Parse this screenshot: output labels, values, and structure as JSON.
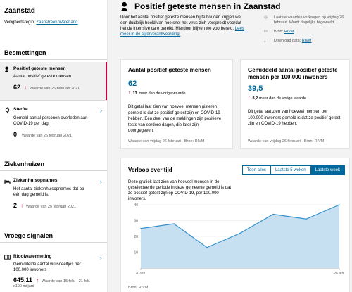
{
  "sidebar": {
    "title": "Zaanstad",
    "region_label": "Veiligheidsregio:",
    "region_link": "Zaanstreek-Waterland",
    "groups": {
      "besmettingen": "Besmettingen",
      "ziekenhuizen": "Ziekenhuizen",
      "vroege": "Vroege signalen"
    },
    "items": {
      "positief": {
        "title": "Positief geteste mensen",
        "desc": "Aantal positief geteste mensen",
        "value": "62",
        "date": "Waarde van 26 februari 2021"
      },
      "sterfte": {
        "title": "Sterfte",
        "desc": "Gemeld aantal personen overleden aan COVID-19 per dag",
        "value": "0",
        "date": "Waarde van 26 februari 2021"
      },
      "ziekenhuis": {
        "title": "Ziekenhuisopnames",
        "desc": "Het aantal ziekenhuisopnames dat op één dag gemeld is.",
        "value": "2",
        "date": "Waarde van 25 februari 2021"
      },
      "riool": {
        "title": "Rioolwatermeting",
        "desc": "Gemiddelde aantal virusdeeltjes per 100.000 inwoners",
        "value": "645,11",
        "date": "Waarde van 15 feb. - 21 feb.",
        "unit": "x100 miljard"
      }
    }
  },
  "main": {
    "title": "Positief geteste mensen in Zaanstad",
    "intro_text": "Door het aantal positief geteste mensen bij te houden krijgen we een duidelijk beeld van hoe snel het virus zich verspreidt voordat het de intensive care bereikt. Hierdoor blijven we voorbereid. ",
    "intro_link": "Lees meer in de cijferverantwoording.",
    "meta": {
      "update": "Laatste waardes verkregen op vrijdag 26 februari. Wordt dagelijks bijgewerkt.",
      "source_label": "Bron: ",
      "source_link": "RIVM",
      "download_label": "Download data: ",
      "download_link": "RIVM"
    },
    "card1": {
      "title": "Aantal positief geteste mensen",
      "value": "62",
      "delta_value": "13",
      "delta_text": "meer dan de vorige waarde",
      "desc": "Dit getal laat zien van hoeveel mensen gisteren gemeld is dat ze positief getest zijn en COVID-19 hebben. Een deel van de meldingen zijn positieve tests van eerdere dagen, die later zijn doorgegeven.",
      "foot": "Waarde van vrijdag 26 februari · Bron: RIVM"
    },
    "card2": {
      "title": "Gemiddeld aantal positief geteste mensen per 100.000 inwoners",
      "value": "39,5",
      "delta_value": "8,2",
      "delta_text": "meer dan de vorige waarde",
      "desc": "Dit getal laat zien van hoeveel mensen per 100.000 inwoners gemeld is dat ze positief getest zijn en COVID-19 hebben.",
      "foot": "Waarde van vrijdag 26 februari · Bron: RIVM"
    },
    "chart": {
      "title": "Verloop over tijd",
      "tabs": [
        "Toon alles",
        "Laatste 5 weken",
        "Laatste week"
      ],
      "selected_tab": 2,
      "desc": "Deze grafiek laat zien van hoeveel mensen in de geselecteerde periode in deze gemeente gemeld is dat ze positief getest zijn op COVID-19, per 100.000 inwoners.",
      "foot": "Bron: RIVM"
    }
  },
  "chart_data": {
    "type": "area",
    "x": [
      "20 feb.",
      "21 feb.",
      "22 feb.",
      "23 feb.",
      "24 feb.",
      "25 feb.",
      "26 feb."
    ],
    "values": [
      25,
      28,
      13,
      22,
      34,
      31,
      40
    ],
    "x_tick_labels": [
      "20 feb.",
      "26 feb."
    ],
    "y_ticks": [
      10,
      20,
      30,
      40
    ],
    "ylim": [
      0,
      40
    ],
    "grid": true,
    "colors": {
      "line": "#3391cc",
      "fill": "#c6dff1"
    }
  },
  "colors": {
    "accent": "#01689b",
    "up_arrow": "#c4003d",
    "active_border": "#c4003d"
  }
}
